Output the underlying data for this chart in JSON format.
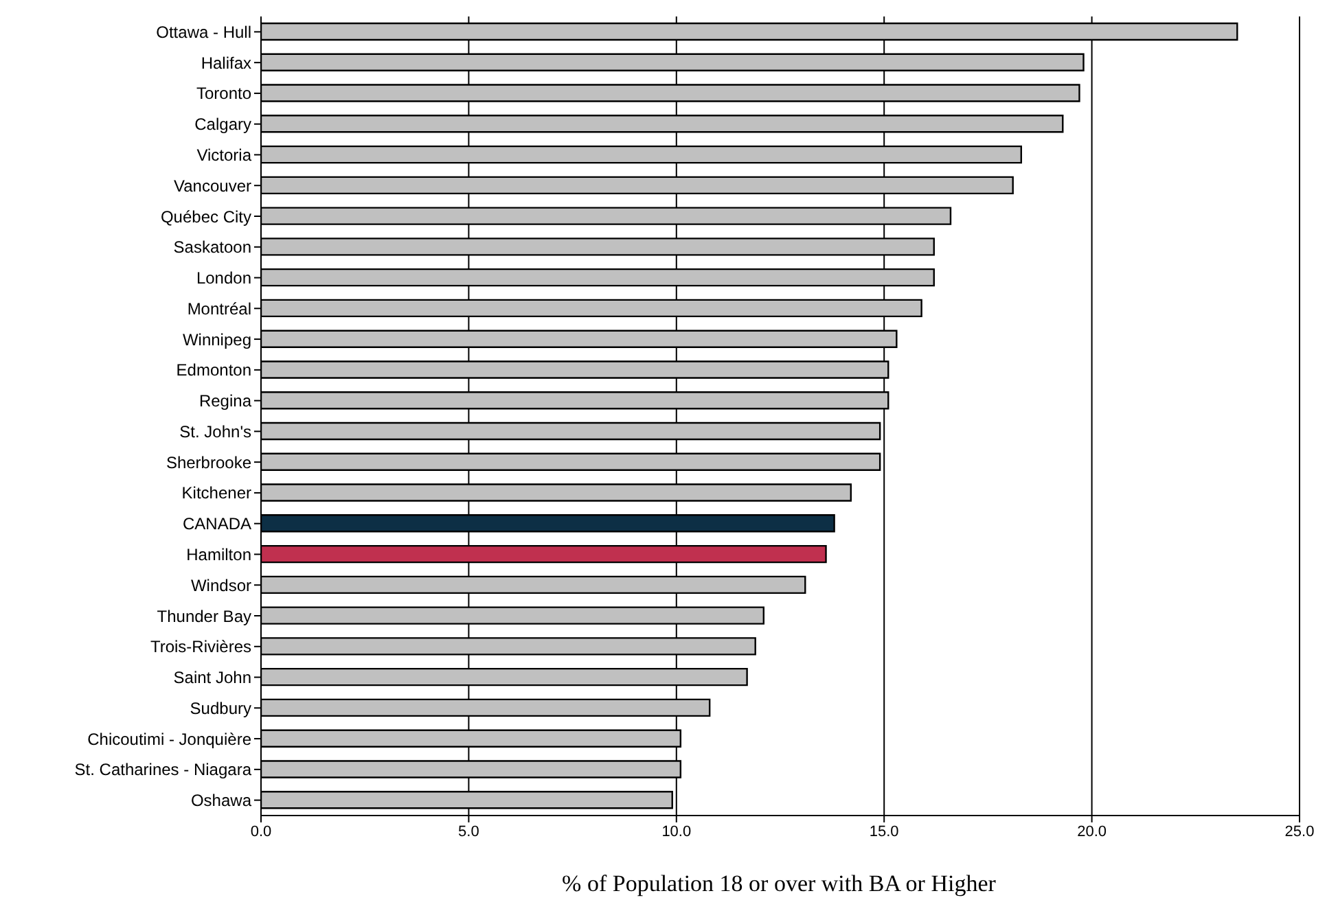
{
  "chart_data": {
    "type": "bar",
    "orientation": "horizontal",
    "xlabel": "% of Population 18 or over with BA or Higher",
    "categories": [
      "Ottawa - Hull",
      "Halifax",
      "Toronto",
      "Calgary",
      "Victoria",
      "Vancouver",
      "Québec City",
      "Saskatoon",
      "London",
      "Montréal",
      "Winnipeg",
      "Edmonton",
      "Regina",
      "St. John's",
      "Sherbrooke",
      "Kitchener",
      "CANADA",
      "Hamilton",
      "Windsor",
      "Thunder Bay",
      "Trois-Rivières",
      "Saint John",
      "Sudbury",
      "Chicoutimi - Jonquière",
      "St. Catharines - Niagara",
      "Oshawa"
    ],
    "values": [
      23.5,
      19.8,
      19.7,
      19.3,
      18.3,
      18.1,
      16.6,
      16.2,
      16.2,
      15.9,
      15.3,
      15.1,
      15.1,
      14.9,
      14.9,
      14.2,
      13.8,
      13.6,
      13.1,
      12.1,
      11.9,
      11.7,
      10.8,
      10.1,
      10.1,
      9.9
    ],
    "colors": [
      "#c0c0c0",
      "#c0c0c0",
      "#c0c0c0",
      "#c0c0c0",
      "#c0c0c0",
      "#c0c0c0",
      "#c0c0c0",
      "#c0c0c0",
      "#c0c0c0",
      "#c0c0c0",
      "#c0c0c0",
      "#c0c0c0",
      "#c0c0c0",
      "#c0c0c0",
      "#c0c0c0",
      "#c0c0c0",
      "#0d2f45",
      "#c0304f",
      "#c0c0c0",
      "#c0c0c0",
      "#c0c0c0",
      "#c0c0c0",
      "#c0c0c0",
      "#c0c0c0",
      "#c0c0c0",
      "#c0c0c0"
    ],
    "xlim": [
      0,
      25
    ],
    "xticks": [
      {
        "value": 0,
        "label": "0.0"
      },
      {
        "value": 5,
        "label": "5.0"
      },
      {
        "value": 10,
        "label": "10.0"
      },
      {
        "value": 15,
        "label": "15.0"
      },
      {
        "value": 20,
        "label": "20.0"
      },
      {
        "value": 25,
        "label": "25.0"
      }
    ],
    "grid": "x"
  }
}
